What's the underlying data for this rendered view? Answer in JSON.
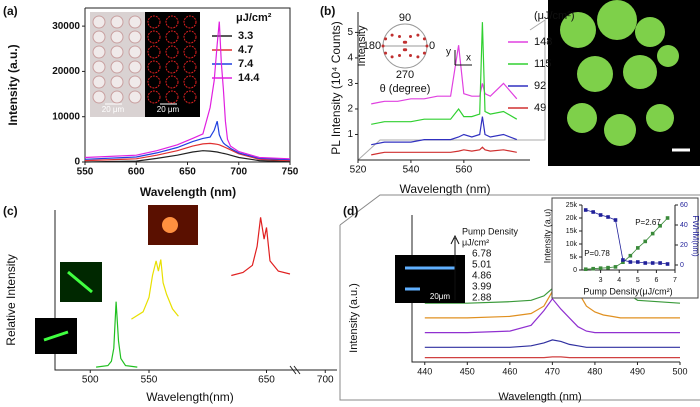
{
  "chart_data": [
    {
      "type": "line",
      "panel_label": "(a)",
      "xlabel": "Wavelength (nm)",
      "ylabel": "Intensity (a.u.)",
      "legend_title": "μJ/cm²",
      "xlim": [
        550,
        750
      ],
      "xticks": [
        550,
        600,
        650,
        700,
        750
      ],
      "ylim": [
        0,
        34000
      ],
      "yticks": [
        0,
        10000,
        20000,
        30000
      ],
      "annotations": [
        "20 μm",
        "20 μm"
      ],
      "x": [
        550,
        600,
        620,
        640,
        655,
        665,
        672,
        676,
        679,
        681,
        683,
        685,
        687,
        689,
        692,
        700,
        720,
        750
      ],
      "series": [
        {
          "name": "3.3",
          "color": "#222222",
          "values": [
            0,
            200,
            800,
            1500,
            2200,
            2500,
            2400,
            2300,
            2200,
            2100,
            2000,
            1900,
            1800,
            1700,
            1500,
            1000,
            300,
            100
          ]
        },
        {
          "name": "4.7",
          "color": "#e03030",
          "values": [
            300,
            700,
            1500,
            2500,
            3500,
            4000,
            4100,
            4000,
            3900,
            3800,
            3600,
            3400,
            3200,
            3000,
            2700,
            1800,
            600,
            300
          ]
        },
        {
          "name": "7.4",
          "color": "#2040e0",
          "values": [
            600,
            1100,
            2000,
            3200,
            4500,
            5200,
            5500,
            7000,
            9000,
            6000,
            5000,
            4200,
            3800,
            3500,
            3000,
            2000,
            800,
            500
          ]
        },
        {
          "name": "14.4",
          "color": "#e020e0",
          "values": [
            1000,
            1500,
            2500,
            3800,
            5200,
            6200,
            12000,
            18000,
            26000,
            31000,
            22000,
            16000,
            9000,
            5000,
            3500,
            2300,
            1000,
            700
          ]
        }
      ]
    },
    {
      "type": "line",
      "panel_label": "(b)",
      "xlabel": "Wavelength (nm)",
      "ylabel": "PL Intensity (10⁴ Counts)",
      "legend_title": "(μJ/cm²)",
      "xlim": [
        520,
        585
      ],
      "xticks": [
        520,
        540,
        560
      ],
      "ylim": [
        0,
        5.8
      ],
      "yticks": [
        1,
        2,
        3,
        4,
        5
      ],
      "inset": {
        "ylabel": "Intensity",
        "xlabel": "θ (degree)",
        "angles": [
          90,
          180,
          0,
          270
        ],
        "axes": [
          "x",
          "y"
        ]
      },
      "x": [
        525,
        530,
        535,
        540,
        545,
        550,
        555,
        558,
        560,
        563,
        566,
        567,
        568,
        570,
        575,
        580
      ],
      "series": [
        {
          "name": "148",
          "color": "#e040e0",
          "values": [
            2.2,
            2.3,
            2.3,
            2.4,
            2.4,
            2.5,
            2.5,
            4.5,
            2.6,
            2.5,
            2.5,
            3.0,
            2.6,
            2.5,
            3.0,
            2.4
          ]
        },
        {
          "name": "115",
          "color": "#30d030",
          "values": [
            1.4,
            1.5,
            1.5,
            1.5,
            1.6,
            1.6,
            1.6,
            2.0,
            1.7,
            1.7,
            1.8,
            5.4,
            1.9,
            1.8,
            1.9,
            1.6
          ]
        },
        {
          "name": "92",
          "color": "#3030c0",
          "values": [
            0.6,
            0.7,
            0.7,
            0.7,
            0.8,
            0.8,
            0.8,
            0.9,
            1.0,
            0.9,
            1.0,
            1.7,
            1.0,
            0.9,
            1.0,
            0.8
          ]
        },
        {
          "name": "49",
          "color": "#d03030",
          "values": [
            0.2,
            0.3,
            0.3,
            0.3,
            0.3,
            0.3,
            0.3,
            0.35,
            0.4,
            0.35,
            0.4,
            0.5,
            0.4,
            0.35,
            0.4,
            0.3
          ]
        }
      ]
    },
    {
      "type": "line",
      "panel_label": "(c)",
      "xlabel": "Wavelength(nm)",
      "ylabel": "Relative Intensity",
      "xlim": [
        470,
        710
      ],
      "xticks": [
        500,
        550,
        650,
        700
      ],
      "ylim": [
        0,
        11
      ],
      "series": [
        {
          "color": "#20c020",
          "x": [
            505,
            515,
            518,
            520,
            522,
            524,
            526,
            530,
            540
          ],
          "values": [
            0.2,
            0.3,
            0.6,
            1.5,
            4.7,
            2.0,
            0.8,
            0.3,
            0.2
          ]
        },
        {
          "color": "#e8e000",
          "x": [
            535,
            545,
            550,
            553,
            556,
            558,
            560,
            562,
            565,
            570,
            575
          ],
          "values": [
            3.5,
            4.0,
            5.0,
            6.5,
            7.5,
            6.8,
            7.6,
            6.0,
            5.2,
            4.2,
            3.7
          ]
        },
        {
          "color": "#e02020",
          "x": [
            620,
            630,
            638,
            642,
            645,
            648,
            650,
            653,
            660,
            670
          ],
          "values": [
            6.5,
            6.7,
            7.2,
            8.5,
            10.5,
            9.0,
            9.8,
            7.5,
            6.8,
            6.6
          ]
        }
      ]
    },
    {
      "type": "line",
      "panel_label": "(d)",
      "xlabel": "Wavelength (nm)",
      "ylabel": "Intensity (a.u.)",
      "legend_title": [
        "Pump Density",
        "μJ/cm²"
      ],
      "xlim": [
        437,
        500
      ],
      "xticks": [
        440,
        450,
        460,
        470,
        480,
        490,
        500
      ],
      "ylim": [
        0,
        10
      ],
      "annotations": [
        "20μm"
      ],
      "x": [
        440,
        450,
        460,
        465,
        468,
        470,
        472,
        474,
        476,
        478,
        480,
        482,
        484,
        486,
        490,
        500
      ],
      "series": [
        {
          "name": "6.78",
          "color": "#3a9a3a",
          "values": [
            4.0,
            4.0,
            4.1,
            4.2,
            4.5,
            5.0,
            5.8,
            7.0,
            8.5,
            9.5,
            9.0,
            8.0,
            6.5,
            5.0,
            4.2,
            4.0
          ]
        },
        {
          "name": "5.01",
          "color": "#e09020",
          "values": [
            3.0,
            3.0,
            3.1,
            3.3,
            3.8,
            4.8,
            5.5,
            5.8,
            4.8,
            3.8,
            3.4,
            3.2,
            3.1,
            3.0,
            3.0,
            3.0
          ]
        },
        {
          "name": "4.86",
          "color": "#9030d0",
          "values": [
            2.0,
            2.0,
            2.1,
            2.5,
            3.5,
            4.3,
            3.6,
            3.0,
            2.4,
            2.1,
            2.0,
            2.0,
            2.0,
            2.0,
            2.0,
            2.0
          ]
        },
        {
          "name": "3.99",
          "color": "#3030a0",
          "values": [
            1.0,
            1.0,
            1.0,
            1.1,
            1.3,
            1.5,
            1.4,
            1.2,
            1.1,
            1.0,
            1.0,
            1.0,
            1.0,
            1.0,
            1.0,
            1.0
          ]
        },
        {
          "name": "2.88",
          "color": "#d04040",
          "values": [
            0.3,
            0.3,
            0.3,
            0.3,
            0.3,
            0.35,
            0.35,
            0.3,
            0.3,
            0.3,
            0.3,
            0.3,
            0.3,
            0.3,
            0.3,
            0.3
          ]
        }
      ]
    },
    {
      "type": "scatter",
      "xlabel": "Pump Density(μJ/cm²)",
      "ylabel": "Intensity (a.u)",
      "y2label": "FWHM(nm)",
      "xlim": [
        2,
        7
      ],
      "xticks": [
        3,
        4,
        5,
        6,
        7
      ],
      "ylim": [
        0,
        25000
      ],
      "yticks": [
        0,
        {
          "value": 5000,
          "label": "5k"
        },
        {
          "value": 10000,
          "label": "10k"
        },
        {
          "value": 15000,
          "label": "15k"
        },
        {
          "value": 20000,
          "label": "20k"
        },
        {
          "value": 25000,
          "label": "25k"
        }
      ],
      "y2lim": [
        -5,
        60
      ],
      "y2ticks": [
        0,
        20,
        40,
        60
      ],
      "annotations": [
        "P=0.78",
        "P=2.67"
      ],
      "x": [
        2.2,
        2.6,
        3.0,
        3.4,
        3.8,
        4.2,
        4.6,
        5.0,
        5.4,
        5.8,
        6.2,
        6.6
      ],
      "series": [
        {
          "color": "#3a8a3a",
          "values": [
            300,
            500,
            700,
            900,
            1200,
            3000,
            5500,
            8500,
            11000,
            14000,
            17000,
            20000
          ]
        },
        {
          "color": "#20209a",
          "axis": "y2",
          "values": [
            55,
            53,
            50,
            48,
            45,
            5,
            3,
            3,
            2,
            2,
            2,
            1
          ]
        }
      ]
    }
  ]
}
